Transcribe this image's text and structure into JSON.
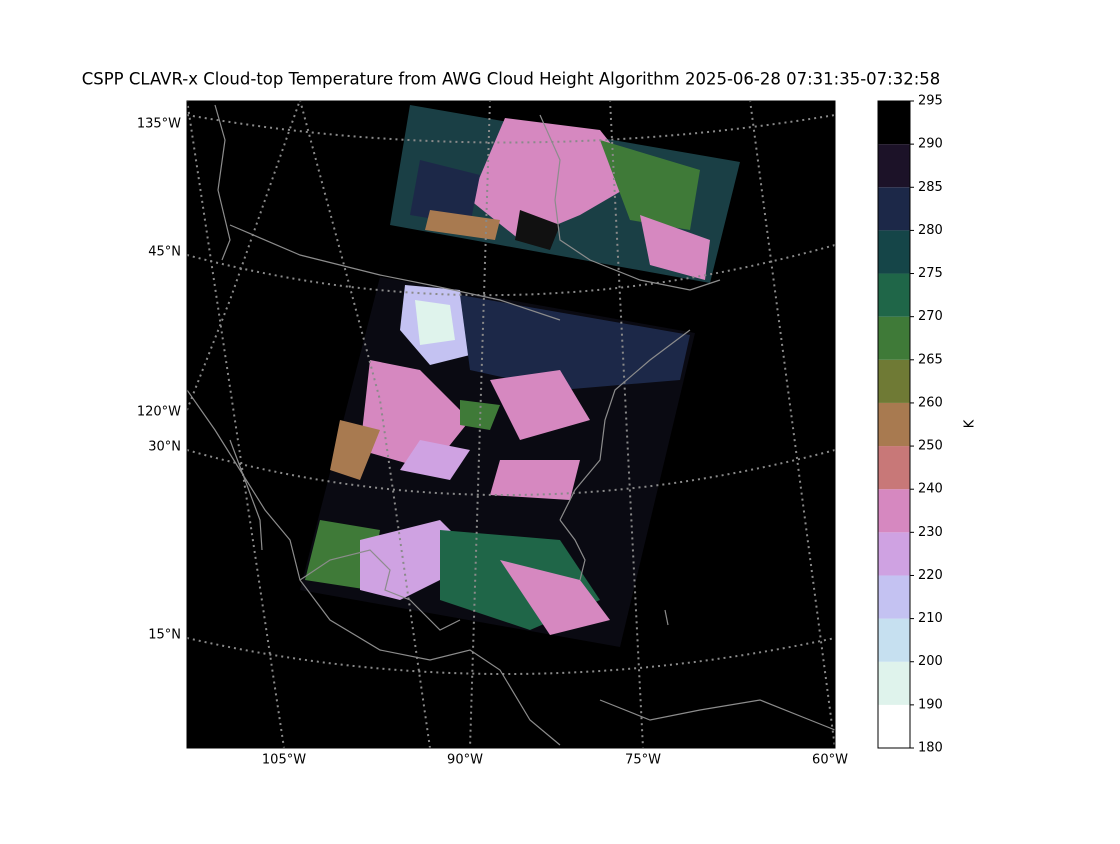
{
  "title": "CSPP CLAVR-x Cloud-top Temperature from AWG Cloud Height Algorithm 2025-06-28 07:31:35-07:32:58",
  "map": {
    "lat_labels": [
      "45°N",
      "30°N",
      "15°N"
    ],
    "lon_left_labels": [
      "135°W",
      "120°W"
    ],
    "lon_bottom_labels": [
      "105°W",
      "90°W",
      "75°W",
      "60°W"
    ]
  },
  "colorbar": {
    "label": "K",
    "ticks": [
      180,
      190,
      200,
      210,
      220,
      230,
      240,
      250,
      260,
      265,
      270,
      275,
      280,
      285,
      290,
      295
    ],
    "colors": [
      "#ffffff",
      "#dff3ec",
      "#c6e0f0",
      "#c4c2f2",
      "#cfa2e2",
      "#d688c0",
      "#c87878",
      "#a87a50",
      "#6f7a35",
      "#3f7a38",
      "#1f6648",
      "#154548",
      "#1c2848",
      "#1c1228",
      "#000000"
    ]
  }
}
